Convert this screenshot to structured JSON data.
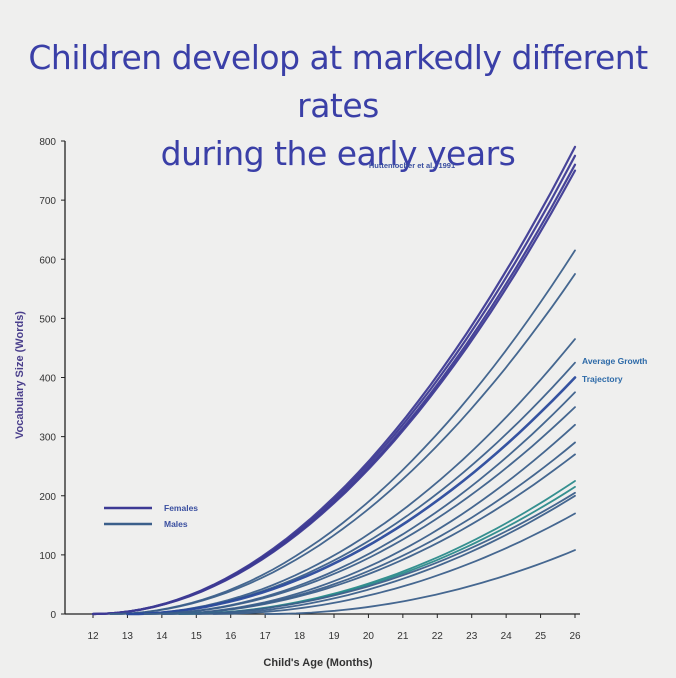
{
  "slide": {
    "title_line1": "Children develop at markedly different rates",
    "title_line2": "during the early years"
  },
  "chart_data": {
    "type": "line",
    "xlabel": "Child's Age (Months)",
    "ylabel": "Vocabulary Size (Words)",
    "xlim": [
      12,
      26
    ],
    "ylim": [
      0,
      800
    ],
    "xticks": [
      12,
      13,
      14,
      15,
      16,
      17,
      18,
      19,
      20,
      21,
      22,
      23,
      24,
      25,
      26
    ],
    "yticks": [
      0,
      100,
      200,
      300,
      400,
      500,
      600,
      700,
      800
    ],
    "citation": "Huttenlocher et al., 1991",
    "annotation": "Average Growth Trajectory",
    "legend": {
      "position": "left",
      "items": [
        {
          "label": "Females",
          "color": "#3d3a94"
        },
        {
          "label": "Males",
          "color": "#3b5f8a"
        }
      ]
    },
    "colors": {
      "female": "#3d3a94",
      "male": "#3b5f8a",
      "average": "#2a4a9c",
      "highlight": "#2a8a8a"
    },
    "series": [
      {
        "group": "female",
        "start": 12,
        "end_value": 790
      },
      {
        "group": "female",
        "start": 12,
        "end_value": 775
      },
      {
        "group": "female",
        "start": 12,
        "end_value": 760
      },
      {
        "group": "female",
        "start": 12,
        "end_value": 750
      },
      {
        "group": "male",
        "start": 12.5,
        "end_value": 615
      },
      {
        "group": "male",
        "start": 12.5,
        "end_value": 575
      },
      {
        "group": "male",
        "start": 13,
        "end_value": 465
      },
      {
        "group": "male",
        "start": 13,
        "end_value": 425
      },
      {
        "group": "average",
        "start": 13,
        "end_value": 400
      },
      {
        "group": "male",
        "start": 13.5,
        "end_value": 375
      },
      {
        "group": "male",
        "start": 13.5,
        "end_value": 350
      },
      {
        "group": "male",
        "start": 14,
        "end_value": 320
      },
      {
        "group": "male",
        "start": 14,
        "end_value": 290
      },
      {
        "group": "male",
        "start": 14,
        "end_value": 270
      },
      {
        "group": "highlight",
        "start": 14.5,
        "end_value": 225
      },
      {
        "group": "highlight",
        "start": 14.5,
        "end_value": 215
      },
      {
        "group": "male",
        "start": 14.5,
        "end_value": 205
      },
      {
        "group": "male",
        "start": 15,
        "end_value": 200
      },
      {
        "group": "male",
        "start": 15.5,
        "end_value": 170
      },
      {
        "group": "male",
        "start": 17,
        "end_value": 108
      }
    ]
  }
}
